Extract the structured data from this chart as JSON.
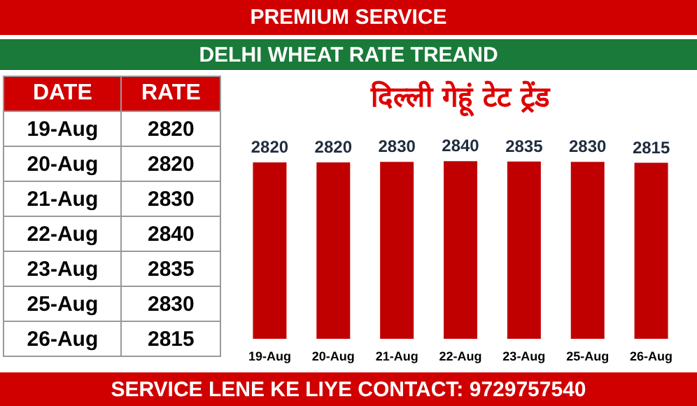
{
  "chart_data": {
    "type": "bar",
    "title": "DELHI WHEAT RATE TREAND",
    "subtitle": "दिल्ली गेहूं टेट ट्रेंड",
    "annotations": [
      "PREMIUM SERVICE",
      "DATE",
      "RATE",
      "SERVICE LENE KE LIYE CONTACT: 9729757540"
    ],
    "categories": [
      "19-Aug",
      "20-Aug",
      "21-Aug",
      "22-Aug",
      "23-Aug",
      "25-Aug",
      "26-Aug"
    ],
    "values": [
      2820,
      2820,
      2830,
      2840,
      2835,
      2830,
      2815
    ],
    "value_labels": [
      "2820",
      "2820",
      "2830",
      "2840",
      "2835",
      "2830",
      "2815"
    ],
    "color": "#c00000",
    "grid": false,
    "tick_labels": "x"
  }
}
